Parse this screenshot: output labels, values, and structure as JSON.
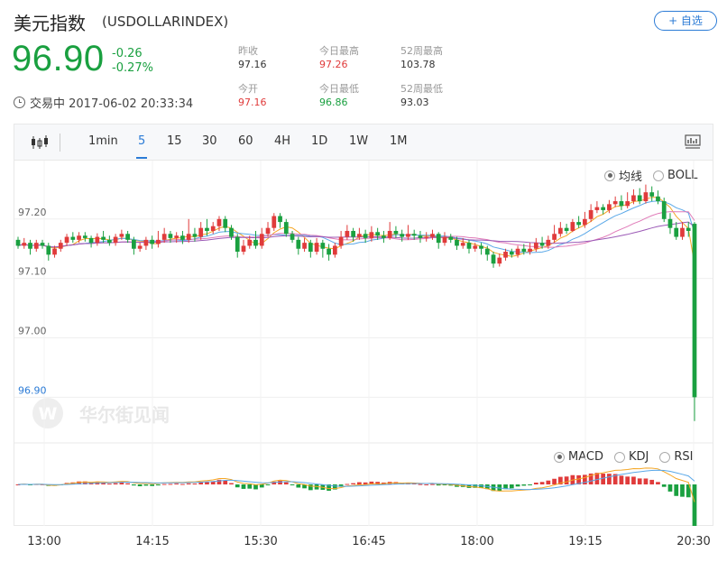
{
  "header": {
    "name": "美元指数",
    "code": "(USDOLLARINDEX)",
    "add_label": "+ 自选",
    "price": "96.90",
    "change": "-0.26",
    "change_pct": "-0.27%",
    "status": "交易中 2017-06-02 20:33:34"
  },
  "stats": [
    {
      "label": "昨收",
      "value": "97.16",
      "color": "default"
    },
    {
      "label": "今日最高",
      "value": "97.26",
      "color": "red"
    },
    {
      "label": "52周最高",
      "value": "103.78",
      "color": "default"
    },
    {
      "label": "今开",
      "value": "97.16",
      "color": "red"
    },
    {
      "label": "今日最低",
      "value": "96.86",
      "color": "green"
    },
    {
      "label": "52周最低",
      "value": "93.03",
      "color": "default"
    }
  ],
  "toolbar": {
    "periods": [
      "1min",
      "5",
      "15",
      "30",
      "60",
      "4H",
      "1D",
      "1W",
      "1M"
    ],
    "active": "5"
  },
  "main_overlay": {
    "options": [
      "均线",
      "BOLL"
    ],
    "selected": "均线"
  },
  "sub_indicator": {
    "options": [
      "MACD",
      "KDJ",
      "RSI"
    ],
    "selected": "MACD"
  },
  "watermark": "华尔街见闻",
  "colors": {
    "up": "#e03b3b",
    "down": "#1aa040",
    "ma_blue": "#5aa8e8",
    "ma_orange": "#f5a623",
    "ma_pink": "#e07ab8",
    "ma_purple": "#9b59b6",
    "accent": "#2b7bd6"
  },
  "chart_data": {
    "type": "candlestick",
    "x_ticks": [
      "13:00",
      "14:15",
      "15:30",
      "16:45",
      "18:00",
      "19:15",
      "20:30"
    ],
    "y_ticks": [
      97.2,
      97.1,
      97.0,
      96.9
    ],
    "ylim": [
      96.855,
      97.265
    ],
    "last_price": 96.9,
    "candles": [
      [
        97.165,
        97.155,
        97.17,
        97.15
      ],
      [
        97.155,
        97.16,
        97.168,
        97.15
      ],
      [
        97.16,
        97.15,
        97.165,
        97.14
      ],
      [
        97.15,
        97.16,
        97.165,
        97.145
      ],
      [
        97.16,
        97.155,
        97.165,
        97.15
      ],
      [
        97.155,
        97.14,
        97.16,
        97.13
      ],
      [
        97.14,
        97.15,
        97.155,
        97.135
      ],
      [
        97.15,
        97.16,
        97.165,
        97.145
      ],
      [
        97.16,
        97.17,
        97.175,
        97.155
      ],
      [
        97.17,
        97.165,
        97.178,
        97.16
      ],
      [
        97.165,
        97.172,
        97.178,
        97.16
      ],
      [
        97.172,
        97.168,
        97.178,
        97.162
      ],
      [
        97.168,
        97.16,
        97.172,
        97.152
      ],
      [
        97.16,
        97.17,
        97.176,
        97.155
      ],
      [
        97.17,
        97.165,
        97.18,
        97.16
      ],
      [
        97.165,
        97.16,
        97.172,
        97.155
      ],
      [
        97.16,
        97.17,
        97.175,
        97.155
      ],
      [
        97.17,
        97.175,
        97.182,
        97.165
      ],
      [
        97.175,
        97.165,
        97.18,
        97.16
      ],
      [
        97.165,
        97.15,
        97.17,
        97.14
      ],
      [
        97.15,
        97.155,
        97.16,
        97.145
      ],
      [
        97.155,
        97.165,
        97.17,
        97.148
      ],
      [
        97.165,
        97.158,
        97.172,
        97.15
      ],
      [
        97.158,
        97.165,
        97.18,
        97.152
      ],
      [
        97.165,
        97.175,
        97.185,
        97.16
      ],
      [
        97.175,
        97.168,
        97.18,
        97.16
      ],
      [
        97.168,
        97.172,
        97.178,
        97.16
      ],
      [
        97.172,
        97.165,
        97.18,
        97.158
      ],
      [
        97.165,
        97.175,
        97.2,
        97.16
      ],
      [
        97.175,
        97.17,
        97.185,
        97.162
      ],
      [
        97.17,
        97.185,
        97.195,
        97.165
      ],
      [
        97.185,
        97.18,
        97.2,
        97.172
      ],
      [
        97.18,
        97.188,
        97.195,
        97.175
      ],
      [
        97.188,
        97.2,
        97.205,
        97.18
      ],
      [
        97.2,
        97.185,
        97.205,
        97.178
      ],
      [
        97.185,
        97.17,
        97.19,
        97.165
      ],
      [
        97.17,
        97.145,
        97.175,
        97.135
      ],
      [
        97.145,
        97.155,
        97.165,
        97.14
      ],
      [
        97.155,
        97.165,
        97.172,
        97.15
      ],
      [
        97.165,
        97.155,
        97.18,
        97.15
      ],
      [
        97.155,
        97.175,
        97.185,
        97.15
      ],
      [
        97.175,
        97.185,
        97.195,
        97.17
      ],
      [
        97.185,
        97.205,
        97.21,
        97.18
      ],
      [
        97.205,
        97.195,
        97.21,
        97.185
      ],
      [
        97.195,
        97.175,
        97.2,
        97.17
      ],
      [
        97.175,
        97.165,
        97.18,
        97.16
      ],
      [
        97.165,
        97.15,
        97.17,
        97.14
      ],
      [
        97.15,
        97.16,
        97.168,
        97.145
      ],
      [
        97.16,
        97.145,
        97.165,
        97.135
      ],
      [
        97.145,
        97.16,
        97.168,
        97.14
      ],
      [
        97.16,
        97.15,
        97.165,
        97.135
      ],
      [
        97.15,
        97.14,
        97.158,
        97.13
      ],
      [
        97.14,
        97.155,
        97.16,
        97.135
      ],
      [
        97.155,
        97.17,
        97.18,
        97.15
      ],
      [
        97.17,
        97.18,
        97.19,
        97.165
      ],
      [
        97.18,
        97.17,
        97.185,
        97.162
      ],
      [
        97.17,
        97.175,
        97.185,
        97.165
      ],
      [
        97.175,
        97.168,
        97.182,
        97.16
      ],
      [
        97.168,
        97.178,
        97.188,
        97.162
      ],
      [
        97.178,
        97.172,
        97.185,
        97.165
      ],
      [
        97.172,
        97.168,
        97.18,
        97.16
      ],
      [
        97.168,
        97.18,
        97.195,
        97.165
      ],
      [
        97.18,
        97.175,
        97.188,
        97.168
      ],
      [
        97.175,
        97.17,
        97.182,
        97.162
      ],
      [
        97.17,
        97.175,
        97.19,
        97.165
      ],
      [
        97.175,
        97.172,
        97.182,
        97.165
      ],
      [
        97.172,
        97.168,
        97.18,
        97.16
      ],
      [
        97.168,
        97.17,
        97.178,
        97.162
      ],
      [
        97.17,
        97.175,
        97.182,
        97.165
      ],
      [
        97.175,
        97.16,
        97.178,
        97.15
      ],
      [
        97.16,
        97.17,
        97.178,
        97.155
      ],
      [
        97.17,
        97.165,
        97.175,
        97.16
      ],
      [
        97.165,
        97.155,
        97.17,
        97.148
      ],
      [
        97.155,
        97.16,
        97.168,
        97.15
      ],
      [
        97.16,
        97.15,
        97.165,
        97.142
      ],
      [
        97.15,
        97.155,
        97.16,
        97.145
      ],
      [
        97.155,
        97.15,
        97.16,
        97.14
      ],
      [
        97.15,
        97.14,
        97.155,
        97.13
      ],
      [
        97.14,
        97.125,
        97.145,
        97.118
      ],
      [
        97.125,
        97.135,
        97.142,
        97.12
      ],
      [
        97.135,
        97.145,
        97.15,
        97.13
      ],
      [
        97.145,
        97.14,
        97.15,
        97.135
      ],
      [
        97.14,
        97.15,
        97.155,
        97.135
      ],
      [
        97.15,
        97.145,
        97.158,
        97.14
      ],
      [
        97.145,
        97.15,
        97.16,
        97.14
      ],
      [
        97.15,
        97.16,
        97.168,
        97.145
      ],
      [
        97.16,
        97.155,
        97.17,
        97.15
      ],
      [
        97.155,
        97.165,
        97.172,
        97.15
      ],
      [
        97.165,
        97.175,
        97.19,
        97.16
      ],
      [
        97.175,
        97.185,
        97.195,
        97.17
      ],
      [
        97.185,
        97.18,
        97.192,
        97.175
      ],
      [
        97.18,
        97.195,
        97.2,
        97.178
      ],
      [
        97.195,
        97.19,
        97.205,
        97.185
      ],
      [
        97.19,
        97.2,
        97.212,
        97.185
      ],
      [
        97.2,
        97.215,
        97.225,
        97.195
      ],
      [
        97.215,
        97.22,
        97.23,
        97.21
      ],
      [
        97.22,
        97.215,
        97.225,
        97.208
      ],
      [
        97.215,
        97.225,
        97.232,
        97.21
      ],
      [
        97.225,
        97.23,
        97.238,
        97.22
      ],
      [
        97.23,
        97.222,
        97.24,
        97.215
      ],
      [
        97.222,
        97.23,
        97.245,
        97.218
      ],
      [
        97.23,
        97.24,
        97.25,
        97.225
      ],
      [
        97.24,
        97.23,
        97.252,
        97.225
      ],
      [
        97.23,
        97.245,
        97.258,
        97.226
      ],
      [
        97.245,
        97.238,
        97.255,
        97.23
      ],
      [
        97.238,
        97.23,
        97.248,
        97.225
      ],
      [
        97.23,
        97.2,
        97.236,
        97.195
      ],
      [
        97.2,
        97.185,
        97.21,
        97.175
      ],
      [
        97.185,
        97.17,
        97.195,
        97.165
      ],
      [
        97.17,
        97.185,
        97.195,
        97.165
      ],
      [
        97.185,
        97.18,
        97.195,
        97.17
      ],
      [
        97.192,
        96.9,
        97.195,
        96.86
      ]
    ]
  }
}
